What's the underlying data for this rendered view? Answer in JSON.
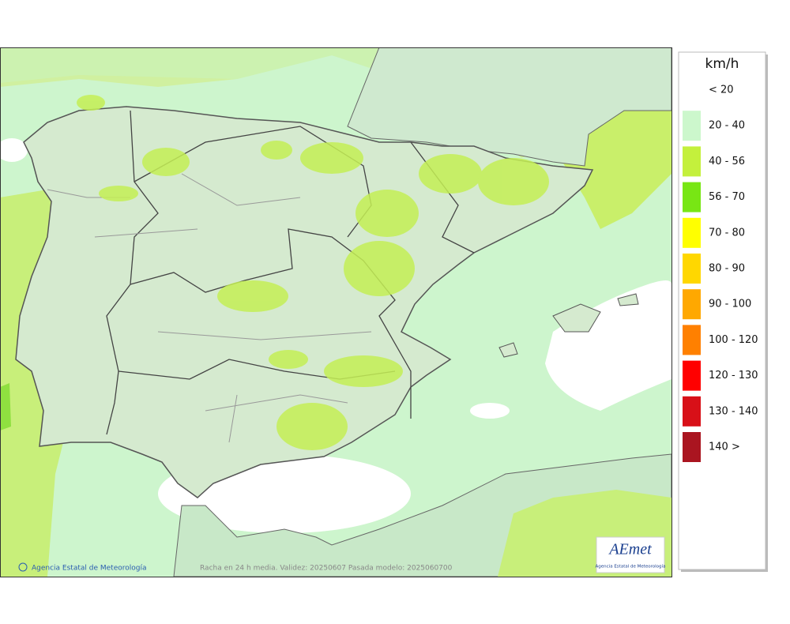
{
  "map": {
    "credit": "Agencia Estatal de Meteorología",
    "caption": "Racha en 24 h media. Validez: 20250607 Pasada modelo: 2025060700",
    "logo": {
      "name": "AEmet",
      "subtitle": "Agencia Estatal de Meteorología"
    }
  },
  "legend": {
    "title": "km/h",
    "items": [
      {
        "label": "< 20",
        "color": "#ffffff"
      },
      {
        "label": "20 - 40",
        "color": "#ccf7cc"
      },
      {
        "label": "40 - 56",
        "color": "#c4f03c"
      },
      {
        "label": "56 - 70",
        "color": "#78e614"
      },
      {
        "label": "70 - 80",
        "color": "#ffff00"
      },
      {
        "label": "80 - 90",
        "color": "#ffd700"
      },
      {
        "label": "90 - 100",
        "color": "#ffa800"
      },
      {
        "label": "100 - 120",
        "color": "#ff8000"
      },
      {
        "label": "120 - 130",
        "color": "#ff0000"
      },
      {
        "label": "130 - 140",
        "color": "#d81018"
      },
      {
        "label": "140 >",
        "color": "#aa1520"
      }
    ]
  }
}
